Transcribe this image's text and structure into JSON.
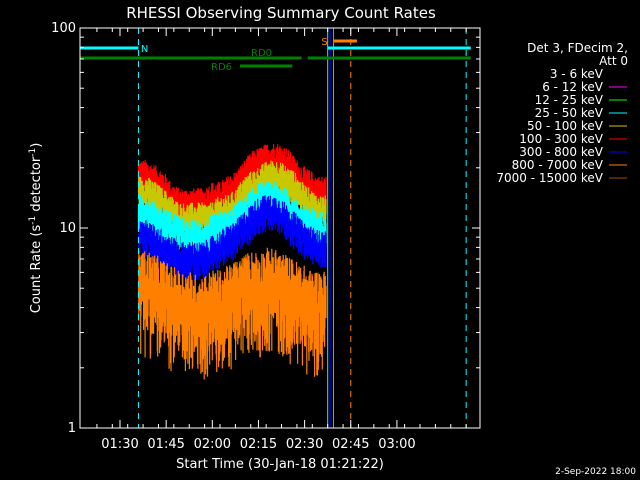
{
  "chart_data": {
    "type": "line",
    "title": "RHESSI Observing Summary Count Rates",
    "xlabel": "Start Time (30-Jan-18 01:21:22)",
    "ylabel_main": "Count Rate (s",
    "ylabel_sup1": "-1",
    "ylabel_mid": " detector",
    "ylabel_sup2": "-1",
    "ylabel_end": ")",
    "yscale": "log",
    "ylim": [
      1,
      100
    ],
    "y_ticks": [
      {
        "value": 1,
        "label": "1"
      },
      {
        "value": 10,
        "label": "10"
      },
      {
        "value": 100,
        "label": "100"
      }
    ],
    "x_range_min": [
      -4,
      126
    ],
    "x_ticks": [
      {
        "t": 9,
        "label": "01:30"
      },
      {
        "t": 24,
        "label": "01:45"
      },
      {
        "t": 39,
        "label": "02:00"
      },
      {
        "t": 54,
        "label": "02:15"
      },
      {
        "t": 69,
        "label": "02:30"
      },
      {
        "t": 84,
        "label": "02:45"
      },
      {
        "t": 99,
        "label": "03:00"
      }
    ],
    "legend_header": [
      "Det 3, FDecim 2,",
      "Att 0"
    ],
    "series": [
      {
        "name": "3 - 6 keV",
        "color": "#000000"
      },
      {
        "name": "6 - 12 keV",
        "color": "#ff00ff"
      },
      {
        "name": "12 - 25 keV",
        "color": "#00ff00"
      },
      {
        "name": "25 - 50 keV",
        "color": "#00ffff"
      },
      {
        "name": "50 - 100 keV",
        "color": "#c8c800"
      },
      {
        "name": "100 - 300 keV",
        "color": "#ff0000"
      },
      {
        "name": "300 - 800 keV",
        "color": "#0000ff"
      },
      {
        "name": "800 - 7000 keV",
        "color": "#ff8000"
      },
      {
        "name": "7000 - 15000 keV",
        "color": "#a05000"
      }
    ],
    "data_window_min": [
      15,
      76
    ],
    "bands": [
      {
        "series": "100 - 300 keV",
        "level": [
          18,
          18,
          17,
          16,
          14,
          13,
          13,
          13,
          13,
          14,
          14,
          15,
          16,
          18,
          20,
          21,
          22,
          22,
          21,
          19,
          17,
          16,
          15,
          15
        ]
      },
      {
        "series": "50 - 100 keV",
        "level": [
          15,
          15,
          14,
          13,
          12,
          11,
          11,
          11,
          11,
          11,
          12,
          12,
          13,
          15,
          16,
          17,
          18,
          18,
          17,
          16,
          14,
          13,
          12,
          12
        ]
      },
      {
        "series": "25 - 50 keV",
        "level": [
          12,
          12,
          11,
          10.5,
          10,
          9.5,
          9,
          9,
          9,
          9.5,
          10,
          10,
          11,
          12,
          13,
          14,
          14,
          14,
          13,
          12,
          11,
          10.5,
          10,
          10
        ]
      },
      {
        "series": "300 - 800 keV",
        "level": [
          9,
          9,
          8.5,
          8,
          7.5,
          7,
          7,
          7,
          7,
          7.5,
          8,
          8.5,
          9,
          10,
          11,
          12,
          12,
          12,
          11,
          10,
          9,
          8.5,
          8,
          8
        ]
      },
      {
        "series": "800 - 7000 keV",
        "level": [
          5,
          5,
          4.8,
          4.5,
          4.2,
          4,
          4,
          3.8,
          3.8,
          4,
          4,
          4.2,
          4.5,
          4.8,
          5,
          5,
          5.2,
          5,
          4.8,
          4.5,
          4.3,
          4,
          4,
          4
        ]
      }
    ],
    "flags": [
      {
        "label": "N",
        "color": "#00ffff",
        "start": -4,
        "end": 15,
        "level": "top",
        "label_t": 17
      },
      {
        "label": "N",
        "color": "#00ffff",
        "start": 76.5,
        "end": 123,
        "level": "top",
        "label_t": null
      },
      {
        "label": "RD0",
        "color": "#008000",
        "start": -4,
        "end": 68,
        "level": "mid",
        "label_t": 55
      },
      {
        "label": "RD0",
        "color": "#008000",
        "start": 70,
        "end": 123,
        "level": "mid",
        "label_t": null
      },
      {
        "label": "RD6",
        "color": "#008000",
        "start": 48,
        "end": 65,
        "level": "low",
        "label_t": 42
      },
      {
        "label": "S",
        "color": "#ff8000",
        "start": 78.5,
        "end": 86,
        "level": "s",
        "label_t": 75.5
      }
    ],
    "vlines_solid": [
      {
        "t": -4,
        "color": "#00ffff"
      },
      {
        "t": 76.5,
        "color": "#00ffff"
      },
      {
        "t": 77.3,
        "color": "#0000ff"
      },
      {
        "t": 78.4,
        "color": "#ff8000"
      }
    ],
    "vlines_dashed": [
      {
        "t": 15,
        "color": "#00ffff"
      },
      {
        "t": 84,
        "color": "#ff8000"
      },
      {
        "t": 121.5,
        "color": "#00ffff"
      }
    ],
    "footer": "2-Sep-2022 18:00"
  }
}
